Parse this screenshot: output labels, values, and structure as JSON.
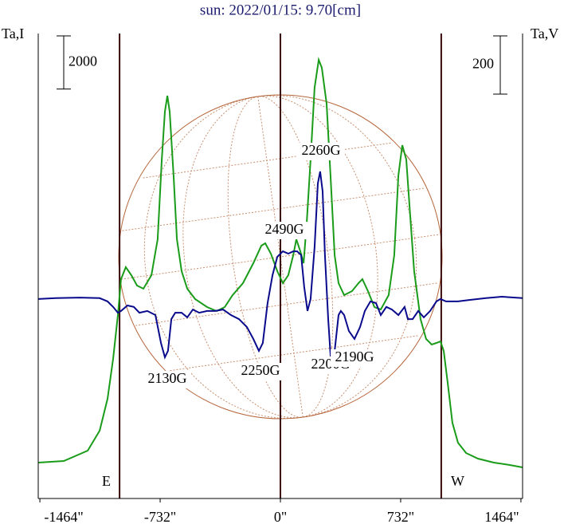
{
  "chart_data": {
    "type": "line",
    "title": "sun: 2022/01/15: 9.70[cm]",
    "y_label": "Ta,I",
    "y2_label": "Ta,V",
    "xlim": [
      -1474,
      1474
    ],
    "xticks": [
      {
        "value": -1464,
        "label": "-1464\""
      },
      {
        "value": -732,
        "label": "-732\""
      },
      {
        "value": 0,
        "label": "0\""
      },
      {
        "value": 732,
        "label": "732\""
      },
      {
        "value": 1464,
        "label": "1464\""
      }
    ],
    "ylim": [
      -1260,
      16230
    ],
    "y2lim": [
      -685,
      912
    ],
    "scale_bars": [
      {
        "value": 2000,
        "label": "2000",
        "axis": "y"
      },
      {
        "value": 200,
        "label": "200",
        "axis": "y2"
      }
    ],
    "vlines": [
      -979,
      0,
      979
    ],
    "limb_labels": [
      "E",
      "W"
    ],
    "annotations": [
      "2260G",
      "2490G",
      "2130G",
      "2250G",
      "2200G",
      "2190G"
    ],
    "series": [
      {
        "name": "I",
        "color": "#1a9c1a",
        "axis": "y",
        "x": [
          -1474,
          -1319,
          -1173,
          -1100,
          -1052,
          -1018,
          -989,
          -970,
          -941,
          -907,
          -873,
          -834,
          -785,
          -747,
          -722,
          -703,
          -688,
          -674,
          -650,
          -630,
          -601,
          -567,
          -519,
          -446,
          -388,
          -339,
          -291,
          -228,
          -165,
          -116,
          -92,
          -58,
          -19,
          15,
          48,
          78,
          97,
          121,
          141,
          160,
          184,
          208,
          233,
          252,
          281,
          305,
          330,
          354,
          388,
          436,
          475,
          499,
          533,
          572,
          611,
          659,
          693,
          718,
          742,
          766,
          790,
          814,
          853,
          887,
          921,
          950,
          974,
          994,
          1018,
          1047,
          1081,
          1130,
          1202,
          1299,
          1396,
          1474
        ],
        "values": [
          90,
          150,
          540,
          1290,
          2490,
          3990,
          5640,
          6990,
          7440,
          7140,
          6750,
          6630,
          7140,
          8490,
          11490,
          13290,
          13890,
          13290,
          10890,
          8490,
          7290,
          6630,
          6240,
          5940,
          5790,
          5940,
          6390,
          6840,
          7590,
          8250,
          8340,
          7950,
          7290,
          6840,
          7140,
          7890,
          8490,
          8040,
          7590,
          9090,
          11490,
          14190,
          15240,
          14940,
          13590,
          10890,
          7890,
          6840,
          6390,
          6540,
          6840,
          6990,
          6540,
          5940,
          5850,
          6390,
          7890,
          10890,
          12030,
          11490,
          9390,
          7290,
          5490,
          4740,
          4530,
          4590,
          4650,
          4290,
          3090,
          1590,
          840,
          450,
          240,
          90,
          0,
          -90
        ]
      },
      {
        "name": "V",
        "color": "#0a0a8c",
        "axis": "y2",
        "x": [
          -1474,
          -1367,
          -1222,
          -1100,
          -1052,
          -1018,
          -989,
          -970,
          -931,
          -892,
          -858,
          -810,
          -761,
          -727,
          -703,
          -684,
          -664,
          -640,
          -601,
          -567,
          -533,
          -494,
          -446,
          -398,
          -349,
          -301,
          -252,
          -204,
          -165,
          -131,
          -107,
          -78,
          -48,
          -19,
          15,
          48,
          78,
          102,
          126,
          145,
          165,
          184,
          208,
          228,
          242,
          257,
          271,
          291,
          310,
          330,
          354,
          368,
          388,
          417,
          451,
          485,
          514,
          548,
          582,
          611,
          645,
          679,
          718,
          756,
          776,
          805,
          839,
          873,
          911,
          950,
          974,
          1008,
          1081,
          1154,
          1251,
          1348,
          1474
        ],
        "values": [
          0,
          3,
          5,
          3,
          -8,
          -27,
          -47,
          -41,
          -22,
          -27,
          -47,
          -41,
          -55,
          -151,
          -200,
          -178,
          -69,
          -47,
          -47,
          -63,
          -36,
          -47,
          -41,
          -41,
          -36,
          -55,
          -69,
          -96,
          -137,
          -178,
          -151,
          -14,
          82,
          145,
          164,
          156,
          164,
          164,
          151,
          41,
          -41,
          0,
          178,
          397,
          438,
          370,
          151,
          -69,
          -233,
          -178,
          -55,
          -41,
          -55,
          -110,
          -137,
          -96,
          -41,
          -8,
          -14,
          -55,
          -27,
          -36,
          -55,
          -27,
          -69,
          -69,
          -41,
          -63,
          -41,
          -8,
          0,
          -8,
          -8,
          -3,
          3,
          8,
          3
        ]
      }
    ]
  }
}
